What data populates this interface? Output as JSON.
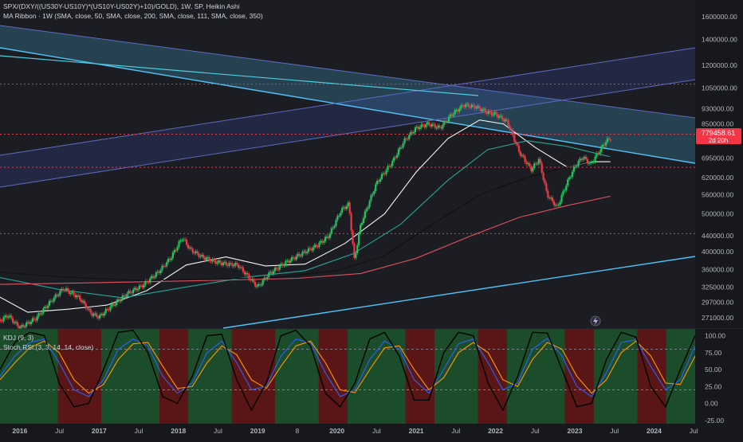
{
  "header": {
    "main_legend": "SPX/(DXY/((US30Y-US10Y)*(US10Y-US02Y)+10)/GOLD), 1W, SP, Heikin Ashi",
    "ma_legend": "MA Ribbon · 1W (SMA, close, 50, SMA, close, 200, SMA, close, 111, SMA, close, 350)",
    "kdj_legend": "KDJ (9, 3)",
    "stoch_legend": "Stoch RSI (3, 3, 14, 14, close)"
  },
  "price_tag": {
    "value": "779458.61",
    "countdown": "2d 20h",
    "color": "#f23645"
  },
  "colors": {
    "up": "#22c55e",
    "down": "#f23645",
    "channel": "#4fc3f7",
    "ma50": "#f5f5f5",
    "ma111": "#26a69a",
    "ma200": "#111111",
    "ma350": "#e05260"
  },
  "icons": {
    "flash": "lightning-icon"
  },
  "chart_data": [
    {
      "type": "candlestick",
      "title": "SPX/(DXY/((US30Y-US10Y)*(US10Y-US02Y)+10)/GOLD), 1W, SP, Heikin Ashi",
      "scale": "log",
      "y_ticks": [
        "1600000.00",
        "1400000.00",
        "1200000.00",
        "1050000.00",
        "930000.00",
        "850000.00",
        "695000.00",
        "620000.00",
        "560000.00",
        "500000.00",
        "440000.00",
        "400000.00",
        "360000.00",
        "325000.00",
        "297000.00",
        "271000.00"
      ],
      "x_ticks": [
        "2016",
        "Jul",
        "2017",
        "Jul",
        "2018",
        "Jul",
        "2019",
        "8",
        "2020",
        "Jul",
        "2021",
        "Jul",
        "2022",
        "Jul",
        "2023",
        "Jul",
        "2024",
        "Jul"
      ],
      "ylim": [
        255000,
        1700000
      ],
      "last_value": 779458.61,
      "series_close": [
        {
          "x": 2015.7,
          "y": 262000
        },
        {
          "x": 2015.85,
          "y": 275000
        },
        {
          "x": 2016.0,
          "y": 255000
        },
        {
          "x": 2016.2,
          "y": 270000
        },
        {
          "x": 2016.4,
          "y": 300000
        },
        {
          "x": 2016.55,
          "y": 322000
        },
        {
          "x": 2016.75,
          "y": 305000
        },
        {
          "x": 2016.9,
          "y": 278000
        },
        {
          "x": 2017.0,
          "y": 272000
        },
        {
          "x": 2017.15,
          "y": 290000
        },
        {
          "x": 2017.35,
          "y": 312000
        },
        {
          "x": 2017.55,
          "y": 328000
        },
        {
          "x": 2017.75,
          "y": 355000
        },
        {
          "x": 2017.9,
          "y": 385000
        },
        {
          "x": 2018.05,
          "y": 435000
        },
        {
          "x": 2018.15,
          "y": 405000
        },
        {
          "x": 2018.3,
          "y": 388000
        },
        {
          "x": 2018.45,
          "y": 378000
        },
        {
          "x": 2018.6,
          "y": 372000
        },
        {
          "x": 2018.75,
          "y": 370000
        },
        {
          "x": 2018.9,
          "y": 342000
        },
        {
          "x": 2019.0,
          "y": 325000
        },
        {
          "x": 2019.15,
          "y": 352000
        },
        {
          "x": 2019.35,
          "y": 375000
        },
        {
          "x": 2019.55,
          "y": 395000
        },
        {
          "x": 2019.75,
          "y": 415000
        },
        {
          "x": 2019.9,
          "y": 440000
        },
        {
          "x": 2020.05,
          "y": 510000
        },
        {
          "x": 2020.15,
          "y": 530000
        },
        {
          "x": 2020.22,
          "y": 380000
        },
        {
          "x": 2020.3,
          "y": 470000
        },
        {
          "x": 2020.5,
          "y": 600000
        },
        {
          "x": 2020.7,
          "y": 680000
        },
        {
          "x": 2020.85,
          "y": 770000
        },
        {
          "x": 2021.0,
          "y": 830000
        },
        {
          "x": 2021.15,
          "y": 850000
        },
        {
          "x": 2021.3,
          "y": 830000
        },
        {
          "x": 2021.45,
          "y": 900000
        },
        {
          "x": 2021.6,
          "y": 950000
        },
        {
          "x": 2021.75,
          "y": 940000
        },
        {
          "x": 2021.9,
          "y": 910000
        },
        {
          "x": 2022.0,
          "y": 900000
        },
        {
          "x": 2022.15,
          "y": 860000
        },
        {
          "x": 2022.3,
          "y": 720000
        },
        {
          "x": 2022.45,
          "y": 650000
        },
        {
          "x": 2022.55,
          "y": 690000
        },
        {
          "x": 2022.65,
          "y": 560000
        },
        {
          "x": 2022.78,
          "y": 520000
        },
        {
          "x": 2022.9,
          "y": 600000
        },
        {
          "x": 2023.0,
          "y": 660000
        },
        {
          "x": 2023.1,
          "y": 700000
        },
        {
          "x": 2023.2,
          "y": 670000
        },
        {
          "x": 2023.3,
          "y": 720000
        },
        {
          "x": 2023.4,
          "y": 770000
        },
        {
          "x": 2023.45,
          "y": 779458
        }
      ],
      "moving_averages": [
        {
          "name": "SMA 50",
          "color": "#f5f5f5",
          "points": [
            {
              "x": 2015.7,
              "y": 310000
            },
            {
              "x": 2016.1,
              "y": 280000
            },
            {
              "x": 2016.6,
              "y": 285000
            },
            {
              "x": 2017.1,
              "y": 292000
            },
            {
              "x": 2017.6,
              "y": 318000
            },
            {
              "x": 2018.1,
              "y": 370000
            },
            {
              "x": 2018.6,
              "y": 388000
            },
            {
              "x": 2019.1,
              "y": 368000
            },
            {
              "x": 2019.6,
              "y": 372000
            },
            {
              "x": 2020.1,
              "y": 420000
            },
            {
              "x": 2020.6,
              "y": 500000
            },
            {
              "x": 2021.0,
              "y": 640000
            },
            {
              "x": 2021.4,
              "y": 780000
            },
            {
              "x": 2021.8,
              "y": 870000
            },
            {
              "x": 2022.1,
              "y": 850000
            },
            {
              "x": 2022.5,
              "y": 740000
            },
            {
              "x": 2022.9,
              "y": 660000
            },
            {
              "x": 2023.2,
              "y": 680000
            },
            {
              "x": 2023.45,
              "y": 680000
            }
          ]
        },
        {
          "name": "SMA 111",
          "color": "#26a69a",
          "points": [
            {
              "x": 2015.7,
              "y": 345000
            },
            {
              "x": 2016.5,
              "y": 320000
            },
            {
              "x": 2017.3,
              "y": 305000
            },
            {
              "x": 2018.1,
              "y": 325000
            },
            {
              "x": 2018.9,
              "y": 345000
            },
            {
              "x": 2019.6,
              "y": 358000
            },
            {
              "x": 2020.2,
              "y": 395000
            },
            {
              "x": 2020.8,
              "y": 470000
            },
            {
              "x": 2021.4,
              "y": 610000
            },
            {
              "x": 2021.9,
              "y": 730000
            },
            {
              "x": 2022.4,
              "y": 770000
            },
            {
              "x": 2022.9,
              "y": 745000
            },
            {
              "x": 2023.45,
              "y": 700000
            }
          ]
        },
        {
          "name": "SMA 200",
          "color": "#111111",
          "points": [
            {
              "x": 2015.7,
              "y": 355000
            },
            {
              "x": 2016.5,
              "y": 345000
            },
            {
              "x": 2017.5,
              "y": 338000
            },
            {
              "x": 2018.5,
              "y": 340000
            },
            {
              "x": 2019.3,
              "y": 345000
            },
            {
              "x": 2020.0,
              "y": 358000
            },
            {
              "x": 2020.6,
              "y": 390000
            },
            {
              "x": 2021.2,
              "y": 470000
            },
            {
              "x": 2021.8,
              "y": 560000
            },
            {
              "x": 2022.4,
              "y": 620000
            },
            {
              "x": 2022.9,
              "y": 660000
            },
            {
              "x": 2023.45,
              "y": 700000
            }
          ]
        },
        {
          "name": "SMA 350",
          "color": "#e05260",
          "points": [
            {
              "x": 2015.7,
              "y": 330000
            },
            {
              "x": 2016.5,
              "y": 332000
            },
            {
              "x": 2017.5,
              "y": 335000
            },
            {
              "x": 2018.5,
              "y": 338000
            },
            {
              "x": 2019.5,
              "y": 342000
            },
            {
              "x": 2020.3,
              "y": 352000
            },
            {
              "x": 2021.0,
              "y": 385000
            },
            {
              "x": 2021.7,
              "y": 440000
            },
            {
              "x": 2022.3,
              "y": 490000
            },
            {
              "x": 2022.9,
              "y": 525000
            },
            {
              "x": 2023.45,
              "y": 555000
            }
          ]
        }
      ],
      "horizontal_levels": [
        1075000,
        800000,
        658000,
        445000
      ]
    },
    {
      "type": "line",
      "title": "KDJ (9, 3) / Stoch RSI (3, 3, 14, 14, close)",
      "y_ticks": [
        "100.00",
        "75.00",
        "50.00",
        "25.00",
        "0.00",
        "-25.00"
      ],
      "ylim": [
        -30,
        110
      ],
      "levels": [
        80,
        20
      ],
      "series": [
        {
          "name": "K",
          "color": "#2962ff",
          "values": [
            40,
            70,
            90,
            95,
            60,
            20,
            10,
            35,
            80,
            95,
            85,
            40,
            15,
            30,
            75,
            92,
            60,
            20,
            25,
            70,
            95,
            90,
            45,
            10,
            20,
            65,
            92,
            80,
            35,
            15,
            50,
            88,
            95,
            60,
            20,
            30,
            80,
            96,
            70,
            25,
            10,
            45,
            90,
            94,
            55,
            20,
            35,
            85
          ]
        },
        {
          "name": "D",
          "color": "#ff9800",
          "values": [
            35,
            60,
            82,
            92,
            75,
            35,
            15,
            28,
            65,
            88,
            90,
            55,
            22,
            25,
            60,
            85,
            72,
            35,
            22,
            55,
            85,
            92,
            60,
            20,
            16,
            50,
            82,
            85,
            50,
            20,
            38,
            75,
            90,
            75,
            35,
            25,
            65,
            90,
            80,
            40,
            15,
            35,
            75,
            92,
            70,
            30,
            28,
            70
          ]
        },
        {
          "name": "J",
          "color": "#000000",
          "values": [
            50,
            90,
            105,
            100,
            30,
            -5,
            0,
            50,
            105,
            108,
            75,
            10,
            0,
            40,
            100,
            102,
            35,
            -10,
            30,
            100,
            108,
            85,
            15,
            -5,
            30,
            95,
            105,
            70,
            5,
            5,
            75,
            105,
            100,
            30,
            -10,
            40,
            105,
            104,
            50,
            -5,
            0,
            65,
            105,
            98,
            25,
            -5,
            50,
            100
          ]
        }
      ],
      "bands": [
        "bull",
        "bull",
        "bull",
        "bull",
        "bear",
        "bear",
        "bear",
        "bull",
        "bull",
        "bull",
        "bull",
        "bear",
        "bear",
        "bull",
        "bull",
        "bull",
        "bear",
        "bear",
        "bear",
        "bull",
        "bull",
        "bull",
        "bear",
        "bear",
        "bull",
        "bull",
        "bull",
        "bull",
        "bear",
        "bear",
        "bull",
        "bull",
        "bull",
        "bear",
        "bear",
        "bull",
        "bull",
        "bull",
        "bull",
        "bear",
        "bear",
        "bull",
        "bull",
        "bull",
        "bear",
        "bear",
        "bull",
        "bull"
      ]
    }
  ]
}
